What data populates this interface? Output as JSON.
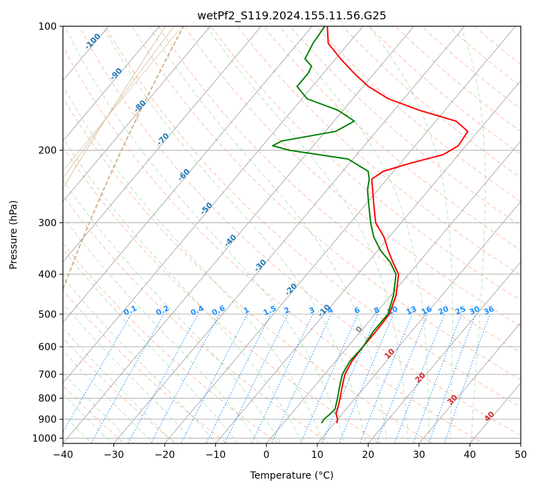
{
  "chart_data": {
    "type": "line",
    "diagram": "skew-t log-p",
    "title": "wetPf2_S119.2024.155.11.56.G25",
    "xlabel": "Temperature (°C)",
    "ylabel": "Pressure (hPa)",
    "xlim": [
      -40,
      50
    ],
    "ylim_hpa": [
      1030,
      100
    ],
    "y_scale": "log",
    "x_ticks": [
      -40,
      -30,
      -20,
      -10,
      0,
      10,
      20,
      30,
      40,
      50
    ],
    "y_ticks": [
      100,
      200,
      300,
      400,
      500,
      600,
      700,
      800,
      900,
      1000
    ],
    "grid": true,
    "colors": {
      "temperature": "#ff0000",
      "dewpoint": "#008000",
      "isotherm": "#808080",
      "dry_adiabat": "#ff6a3d",
      "moist_adiabat": "#3cb043",
      "mixing_ratio": "#1e90ff",
      "unlabelled_curve": "#d2b48c"
    },
    "series": [
      {
        "role": "temperature",
        "points": [
          [
            10.5,
            920
          ],
          [
            10,
            900
          ],
          [
            8.7,
            870
          ],
          [
            8.3,
            850
          ],
          [
            7,
            800
          ],
          [
            5.5,
            750
          ],
          [
            4,
            700
          ],
          [
            3.2,
            650
          ],
          [
            3,
            600
          ],
          [
            3,
            550
          ],
          [
            2.8,
            500
          ],
          [
            1,
            450
          ],
          [
            -2,
            400
          ],
          [
            -5,
            375
          ],
          [
            -8,
            350
          ],
          [
            -11,
            325
          ],
          [
            -15,
            300
          ],
          [
            -18.5,
            270
          ],
          [
            -21,
            250
          ],
          [
            -23,
            235
          ],
          [
            -22,
            225
          ],
          [
            -18,
            215
          ],
          [
            -13,
            205
          ],
          [
            -11.5,
            195
          ],
          [
            -12,
            180
          ],
          [
            -16,
            170
          ],
          [
            -25,
            160
          ],
          [
            -33,
            150
          ],
          [
            -39,
            140
          ],
          [
            -44,
            130
          ],
          [
            -49,
            120
          ],
          [
            -54,
            110
          ],
          [
            -57,
            100
          ]
        ],
        "x": [
          10.5,
          10,
          8.7,
          8.3,
          7,
          5.5,
          4,
          3.2,
          3,
          3,
          2.8,
          1,
          -2,
          -5,
          -8,
          -11,
          -15,
          -18.5,
          -21,
          -23,
          -22,
          -18,
          -13,
          -11.5,
          -12,
          -16,
          -25,
          -33,
          -39,
          -44,
          -49,
          -54,
          -57
        ],
        "y": [
          920,
          900,
          870,
          850,
          800,
          750,
          700,
          650,
          600,
          550,
          500,
          450,
          400,
          375,
          350,
          325,
          300,
          270,
          250,
          235,
          225,
          215,
          205,
          195,
          180,
          170,
          160,
          150,
          140,
          130,
          120,
          110,
          100
        ]
      },
      {
        "role": "dewpoint",
        "points": [
          [
            7.5,
            920
          ],
          [
            7.3,
            900
          ],
          [
            7.7,
            870
          ],
          [
            7.8,
            850
          ],
          [
            6.5,
            800
          ],
          [
            5,
            750
          ],
          [
            3.5,
            700
          ],
          [
            2.8,
            650
          ],
          [
            3,
            600
          ],
          [
            2.5,
            550
          ],
          [
            2.5,
            500
          ],
          [
            0.5,
            450
          ],
          [
            -2.5,
            400
          ],
          [
            -5.5,
            375
          ],
          [
            -9.5,
            350
          ],
          [
            -13,
            325
          ],
          [
            -16,
            300
          ],
          [
            -19.5,
            270
          ],
          [
            -22,
            250
          ],
          [
            -23.5,
            235
          ],
          [
            -25,
            225
          ],
          [
            -31,
            210
          ],
          [
            -44,
            200
          ],
          [
            -48,
            195
          ],
          [
            -47,
            190
          ],
          [
            -38,
            180
          ],
          [
            -36,
            170
          ],
          [
            -41,
            160
          ],
          [
            -49,
            150
          ],
          [
            -53,
            140
          ],
          [
            -53,
            130
          ],
          [
            -53.5,
            125
          ],
          [
            -56,
            120
          ],
          [
            -57,
            110
          ],
          [
            -57.5,
            100
          ]
        ],
        "x": [
          7.5,
          7.3,
          7.7,
          7.8,
          6.5,
          5,
          3.5,
          2.8,
          3,
          2.5,
          2.5,
          0.5,
          -2.5,
          -5.5,
          -9.5,
          -13,
          -16,
          -19.5,
          -22,
          -23.5,
          -25,
          -31,
          -44,
          -48,
          -47,
          -38,
          -36,
          -41,
          -49,
          -53,
          -53,
          -53.5,
          -56,
          -57,
          -57.5
        ],
        "y": [
          920,
          900,
          870,
          850,
          800,
          750,
          700,
          650,
          600,
          550,
          500,
          450,
          400,
          375,
          350,
          325,
          300,
          270,
          250,
          235,
          225,
          210,
          200,
          195,
          190,
          180,
          170,
          160,
          150,
          140,
          130,
          125,
          120,
          110,
          100
        ]
      }
    ],
    "mixing_ratio_labels": [
      "0.1",
      "0.2",
      "0.4",
      "0.6",
      "1",
      "1.5",
      "2",
      "3",
      "4",
      "6",
      "8",
      "10",
      "13",
      "16",
      "20",
      "25",
      "30",
      "36"
    ],
    "mixing_ratio_values": [
      0.1,
      0.2,
      0.4,
      0.6,
      1,
      1.5,
      2,
      3,
      4,
      6,
      8,
      10,
      13,
      16,
      20,
      25,
      30,
      36
    ],
    "mixing_ratio_label_pressure_hpa": 500,
    "dry_adiabat_labels": [
      {
        "text": "-100",
        "p": 110
      },
      {
        "text": "-90",
        "p": 132
      },
      {
        "text": "-80",
        "p": 158
      },
      {
        "text": "-70",
        "p": 190
      },
      {
        "text": "-60",
        "p": 232
      },
      {
        "text": "-50",
        "p": 280
      },
      {
        "text": "-40",
        "p": 335
      },
      {
        "text": "-30",
        "p": 385
      },
      {
        "text": "-20",
        "p": 440
      },
      {
        "text": "-10",
        "p": 495
      }
    ],
    "moist_adiabat_labels": [
      {
        "text": "0",
        "p": 550
      },
      {
        "text": "10",
        "p": 630
      },
      {
        "text": "20",
        "p": 720
      },
      {
        "text": "30",
        "p": 815
      },
      {
        "text": "40",
        "p": 895
      }
    ]
  }
}
